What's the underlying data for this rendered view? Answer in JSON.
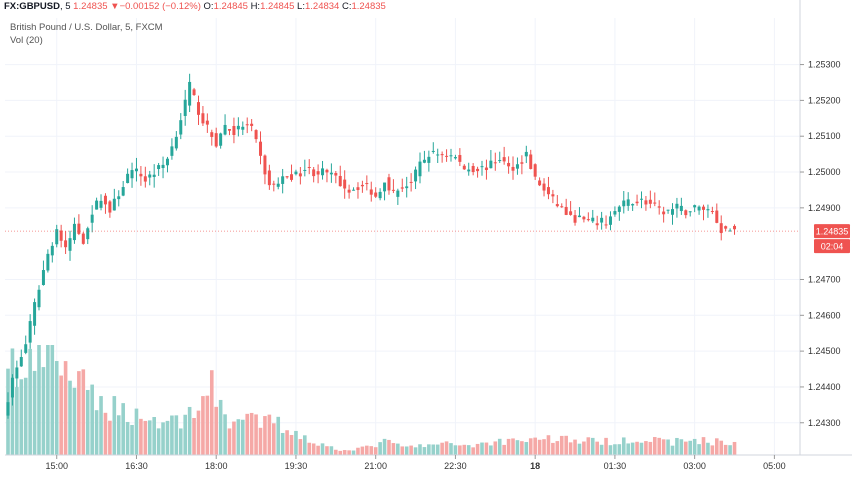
{
  "header": {
    "symbol": "FX:GBPUSD",
    "interval": "5",
    "last": "1.24835",
    "change_arrow": "▼",
    "change": "−0.00152 (−0.12%)",
    "o_label": "O:",
    "o_value": "1.24845",
    "h_label": "H:",
    "h_value": "1.24845",
    "l_label": "L:",
    "l_value": "1.24834",
    "c_label": "C:",
    "c_value": "1.24835"
  },
  "legend": {
    "title": "British Pound / U.S. Dollar, 5, FXCM",
    "volume": "Vol (20)"
  },
  "price_label": {
    "value": "1.24835",
    "countdown": "02:04",
    "color": "#ef5350"
  },
  "colors": {
    "up": "#26a69a",
    "down": "#ef5350",
    "up_vol": "#96d1cb",
    "down_vol": "#f5a8a6"
  },
  "chart_data": {
    "type": "candlestick",
    "title": "British Pound / U.S. Dollar, 5, FXCM",
    "ylim": [
      1.2421,
      1.2543
    ],
    "yticks": [
      {
        "value": 1.253,
        "label": "1.25300"
      },
      {
        "value": 1.252,
        "label": "1.25200"
      },
      {
        "value": 1.251,
        "label": "1.25100"
      },
      {
        "value": 1.25,
        "label": "1.25000"
      },
      {
        "value": 1.249,
        "label": "1.24900"
      },
      {
        "value": 1.247,
        "label": "1.24700"
      },
      {
        "value": 1.246,
        "label": "1.24600"
      },
      {
        "value": 1.245,
        "label": "1.24500"
      },
      {
        "value": 1.244,
        "label": "1.24400"
      },
      {
        "value": 1.243,
        "label": "1.24300"
      }
    ],
    "xticks": [
      {
        "index": 11,
        "label": "15:00"
      },
      {
        "index": 29,
        "label": "16:30"
      },
      {
        "index": 47,
        "label": "18:00"
      },
      {
        "index": 65,
        "label": "19:30"
      },
      {
        "index": 83,
        "label": "21:00"
      },
      {
        "index": 101,
        "label": "22:30"
      },
      {
        "index": 119,
        "label": "18"
      },
      {
        "index": 137,
        "label": "01:30"
      },
      {
        "index": 155,
        "label": "03:00"
      },
      {
        "index": 173,
        "label": "05:00"
      }
    ],
    "last_price": 1.24835,
    "keypoints": [
      [
        0,
        1.2432
      ],
      [
        2,
        1.2442
      ],
      [
        5,
        1.2452
      ],
      [
        8,
        1.2468
      ],
      [
        10,
        1.2477
      ],
      [
        12,
        1.2484
      ],
      [
        14,
        1.2478
      ],
      [
        16,
        1.2485
      ],
      [
        18,
        1.2481
      ],
      [
        20,
        1.2489
      ],
      [
        22,
        1.2493
      ],
      [
        24,
        1.2489
      ],
      [
        26,
        1.2494
      ],
      [
        28,
        1.2499
      ],
      [
        30,
        1.25
      ],
      [
        32,
        1.2498
      ],
      [
        34,
        1.25
      ],
      [
        36,
        1.2502
      ],
      [
        38,
        1.2507
      ],
      [
        40,
        1.2515
      ],
      [
        42,
        1.2524
      ],
      [
        44,
        1.2517
      ],
      [
        46,
        1.2512
      ],
      [
        48,
        1.2508
      ],
      [
        50,
        1.2513
      ],
      [
        52,
        1.2511
      ],
      [
        54,
        1.2513
      ],
      [
        56,
        1.2512
      ],
      [
        58,
        1.2504
      ],
      [
        60,
        1.2496
      ],
      [
        62,
        1.2497
      ],
      [
        64,
        1.2499
      ],
      [
        66,
        1.2499
      ],
      [
        68,
        1.2501
      ],
      [
        70,
        1.25
      ],
      [
        72,
        1.25
      ],
      [
        74,
        1.2499
      ],
      [
        76,
        1.2497
      ],
      [
        78,
        1.2495
      ],
      [
        80,
        1.2496
      ],
      [
        82,
        1.2496
      ],
      [
        84,
        1.2493
      ],
      [
        86,
        1.2498
      ],
      [
        88,
        1.2494
      ],
      [
        90,
        1.2496
      ],
      [
        92,
        1.2497
      ],
      [
        94,
        1.2502
      ],
      [
        96,
        1.2505
      ],
      [
        98,
        1.2505
      ],
      [
        100,
        1.2505
      ],
      [
        102,
        1.2504
      ],
      [
        104,
        1.2501
      ],
      [
        106,
        1.2501
      ],
      [
        108,
        1.2501
      ],
      [
        110,
        1.2502
      ],
      [
        112,
        1.2504
      ],
      [
        114,
        1.2501
      ],
      [
        116,
        1.2502
      ],
      [
        118,
        1.2505
      ],
      [
        120,
        1.2498
      ],
      [
        122,
        1.2495
      ],
      [
        124,
        1.2492
      ],
      [
        126,
        1.249
      ],
      [
        128,
        1.2487
      ],
      [
        130,
        1.2487
      ],
      [
        132,
        1.2486
      ],
      [
        134,
        1.2486
      ],
      [
        136,
        1.2486
      ],
      [
        138,
        1.2489
      ],
      [
        140,
        1.2491
      ],
      [
        142,
        1.2492
      ],
      [
        144,
        1.2492
      ],
      [
        146,
        1.2491
      ],
      [
        148,
        1.2489
      ],
      [
        150,
        1.2489
      ],
      [
        152,
        1.249
      ],
      [
        154,
        1.2489
      ],
      [
        156,
        1.249
      ],
      [
        158,
        1.249
      ],
      [
        160,
        1.2489
      ],
      [
        162,
        1.2484
      ],
      [
        164,
        1.2484
      ]
    ],
    "volume_profile": [
      [
        0,
        0.95
      ],
      [
        3,
        0.62
      ],
      [
        6,
        0.85
      ],
      [
        10,
        1.0
      ],
      [
        14,
        0.72
      ],
      [
        20,
        0.48
      ],
      [
        25,
        0.42
      ],
      [
        30,
        0.35
      ],
      [
        35,
        0.3
      ],
      [
        40,
        0.33
      ],
      [
        44,
        0.55
      ],
      [
        46,
        0.6
      ],
      [
        50,
        0.32
      ],
      [
        55,
        0.3
      ],
      [
        60,
        0.3
      ],
      [
        64,
        0.22
      ],
      [
        67,
        0.17
      ],
      [
        70,
        0.1
      ],
      [
        75,
        0.05
      ],
      [
        80,
        0.06
      ],
      [
        85,
        0.12
      ],
      [
        90,
        0.07
      ],
      [
        95,
        0.09
      ],
      [
        100,
        0.1
      ],
      [
        105,
        0.09
      ],
      [
        110,
        0.12
      ],
      [
        115,
        0.14
      ],
      [
        120,
        0.15
      ],
      [
        125,
        0.15
      ],
      [
        130,
        0.13
      ],
      [
        135,
        0.12
      ],
      [
        140,
        0.15
      ],
      [
        145,
        0.13
      ],
      [
        150,
        0.12
      ],
      [
        155,
        0.14
      ],
      [
        160,
        0.12
      ],
      [
        164,
        0.11
      ]
    ],
    "candle_count": 165
  }
}
